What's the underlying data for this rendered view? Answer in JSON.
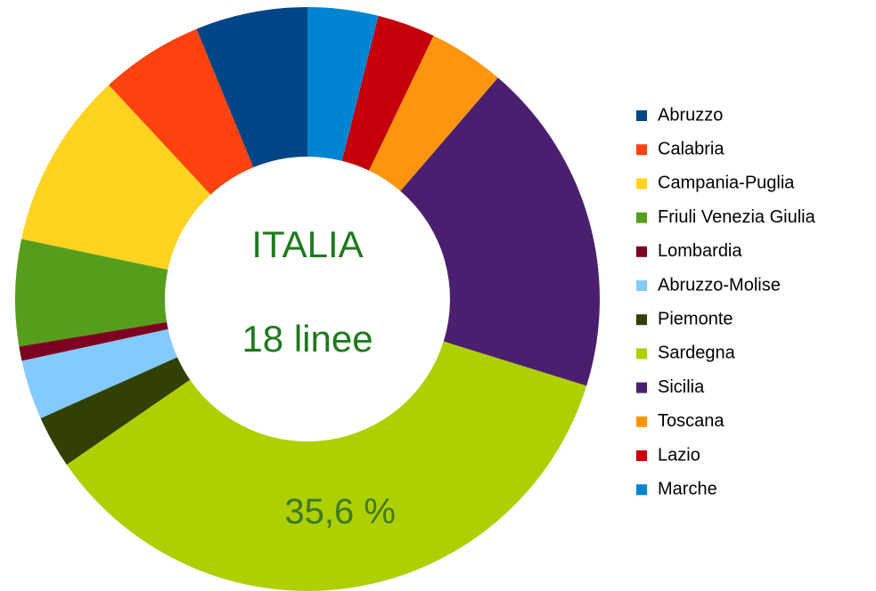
{
  "chart_data": {
    "type": "donut",
    "annotations": [
      "ITALIA",
      "18 linee"
    ],
    "categories": [
      "Abruzzo",
      "Calabria",
      "Campania-Puglia",
      "Friuli Venezia Giulia",
      "Lombardia",
      "Abruzzo-Molise",
      "Piemonte",
      "Sardegna",
      "Sicilia",
      "Toscana",
      "Lazio",
      "Marche"
    ],
    "values": [
      6.2,
      5.7,
      9.8,
      5.9,
      0.8,
      3.3,
      2.9,
      35.6,
      18.5,
      4.2,
      3.2,
      3.9
    ],
    "value_labels": [
      null,
      null,
      null,
      null,
      null,
      null,
      null,
      "35,6 %",
      null,
      null,
      null,
      null
    ],
    "colors": [
      "#004586",
      "#ff420e",
      "#ffd320",
      "#579d1c",
      "#7e0021",
      "#83caff",
      "#314004",
      "#aecf00",
      "#4b1f6f",
      "#ff950e",
      "#c5000b",
      "#0084d1"
    ],
    "legend": "right"
  }
}
